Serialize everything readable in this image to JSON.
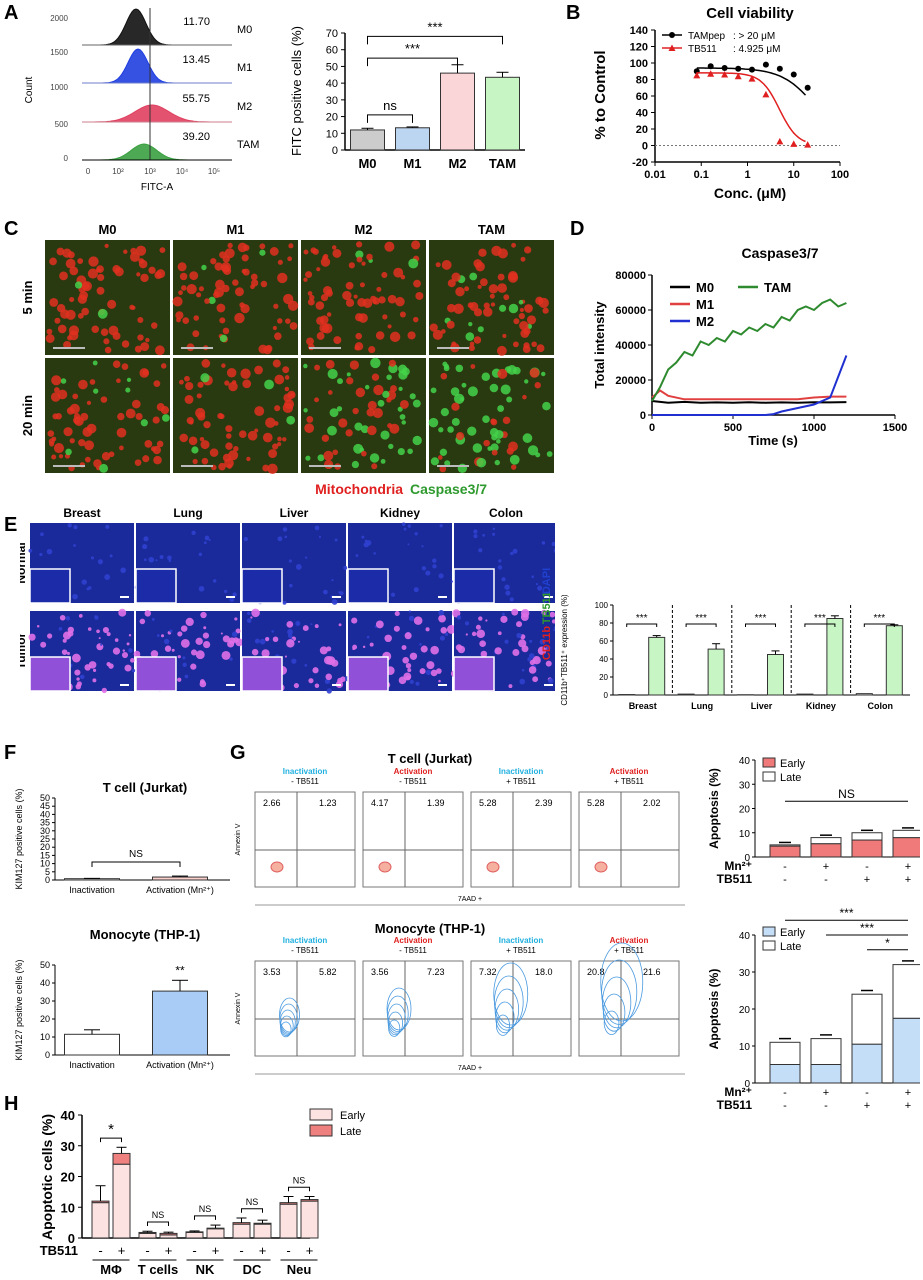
{
  "panels": {
    "A": "A",
    "B": "B",
    "C": "C",
    "D": "D",
    "E": "E",
    "F": "F",
    "G": "G",
    "H": "H"
  },
  "A_hist": {
    "ylabel": "Count",
    "xlabel": "FITC-A",
    "yticks": [
      "2000",
      "1500",
      "1000",
      "500",
      "0"
    ],
    "xticks": [
      "0",
      "10²",
      "10³",
      "10⁴",
      "10⁵"
    ],
    "rows": [
      {
        "name": "M0",
        "value": "11.70",
        "color": "#111111"
      },
      {
        "name": "M1",
        "value": "13.45",
        "color": "#1f3fe0"
      },
      {
        "name": "M2",
        "value": "55.75",
        "color": "#e04060"
      },
      {
        "name": "TAM",
        "value": "39.20",
        "color": "#3aa040"
      }
    ]
  },
  "A_bar": {
    "chart_data": {
      "type": "bar",
      "categories": [
        "M0",
        "M1",
        "M2",
        "TAM"
      ],
      "values": [
        12,
        13.3,
        46,
        43.5
      ],
      "errors": [
        1,
        0.5,
        5,
        3
      ],
      "colors": [
        "#cccccc",
        "#bcd5f0",
        "#fbd6d8",
        "#c8f5c4"
      ],
      "ylabel": "FITC positive cells (%)",
      "ylim": [
        0,
        70
      ],
      "yticks": [
        "0",
        "10",
        "20",
        "30",
        "40",
        "50",
        "60",
        "70"
      ],
      "annotations": [
        "ns",
        "***",
        "***"
      ]
    }
  },
  "B": {
    "chart_data": {
      "type": "scatter",
      "title": "Cell viability",
      "xlabel": "Conc. (μM)",
      "ylabel": "% to Control",
      "xscale": "log",
      "xlim": [
        0.01,
        100
      ],
      "ylim": [
        -20,
        140
      ],
      "xticks": [
        "0.01",
        "0.1",
        "1",
        "10",
        "100"
      ],
      "yticks": [
        "-20",
        "0",
        "20",
        "40",
        "60",
        "80",
        "100",
        "120",
        "140"
      ],
      "series": [
        {
          "name": "TAMpep",
          "ic50_label": ":  > 20 μM",
          "color": "#000000",
          "x": [
            0.08,
            0.16,
            0.32,
            0.63,
            1.25,
            2.5,
            5,
            10,
            20
          ],
          "y": [
            90,
            96,
            94,
            93,
            92,
            98,
            93,
            86,
            70
          ]
        },
        {
          "name": "TB511",
          "ic50_label": ":  4.925 μM",
          "color": "#e02020",
          "x": [
            0.08,
            0.16,
            0.32,
            0.63,
            1.25,
            2.5,
            5,
            10,
            20
          ],
          "y": [
            85,
            87,
            86,
            84,
            81,
            62,
            5,
            2,
            1
          ]
        }
      ]
    }
  },
  "C": {
    "cols": [
      "M0",
      "M1",
      "M2",
      "TAM"
    ],
    "rows": [
      "5 min",
      "20 min"
    ],
    "legend_red": "Mitochondria",
    "legend_green": "Caspase3/7"
  },
  "D": {
    "chart_data": {
      "type": "line",
      "title": "Caspase3/7",
      "xlabel": "Time (s)",
      "ylabel": "Total intensity",
      "xlim": [
        0,
        1500
      ],
      "ylim": [
        0,
        80000
      ],
      "xticks": [
        "0",
        "500",
        "1000",
        "1500"
      ],
      "yticks": [
        "0",
        "20000",
        "40000",
        "60000",
        "80000"
      ],
      "series": [
        {
          "name": "M0",
          "color": "#000000",
          "x": [
            0,
            100,
            200,
            300,
            400,
            500,
            600,
            700,
            800,
            900,
            1000,
            1100,
            1200
          ],
          "y": [
            8000,
            7000,
            7500,
            7000,
            7200,
            7000,
            7300,
            7000,
            7200,
            7000,
            7300,
            7200,
            7400
          ]
        },
        {
          "name": "M1",
          "color": "#e04040",
          "x": [
            0,
            50,
            100,
            200,
            300,
            400,
            500,
            600,
            700,
            800,
            900,
            1000,
            1100,
            1200
          ],
          "y": [
            10000,
            14000,
            11000,
            9000,
            9000,
            9000,
            9000,
            9000,
            9000,
            9000,
            9000,
            10000,
            10500,
            10500
          ]
        },
        {
          "name": "M2",
          "color": "#2030d0",
          "x": [
            0,
            700,
            750,
            800,
            900,
            1000,
            1100,
            1150,
            1200
          ],
          "y": [
            0,
            0,
            500,
            2000,
            4000,
            6000,
            10000,
            22000,
            34000
          ]
        },
        {
          "name": "TAM",
          "color": "#2e8a2e",
          "x": [
            0,
            50,
            100,
            150,
            200,
            250,
            300,
            350,
            400,
            450,
            500,
            550,
            600,
            650,
            700,
            750,
            800,
            850,
            900,
            950,
            1000,
            1050,
            1100,
            1150,
            1200
          ],
          "y": [
            8000,
            16000,
            26000,
            30000,
            36000,
            34000,
            42000,
            40000,
            44000,
            42000,
            48000,
            46000,
            50000,
            48000,
            52000,
            50000,
            56000,
            54000,
            60000,
            62000,
            60000,
            64000,
            66000,
            62000,
            64000
          ]
        }
      ]
    }
  },
  "E": {
    "cols": [
      "Breast",
      "Lung",
      "Liver",
      "Kidney",
      "Colon"
    ],
    "rows": [
      "Normal",
      "Tumor"
    ],
    "side_label_red": "CD11b",
    "side_label_green": "TB511",
    "side_label_blue": "DAPI",
    "chart_data": {
      "type": "bar",
      "categories": [
        "Breast",
        "Lung",
        "Liver",
        "Kidney",
        "Colon"
      ],
      "series": [
        {
          "name": "Normal",
          "values": [
            0.5,
            1,
            0.3,
            1,
            1.5
          ],
          "color": "#ffffff"
        },
        {
          "name": "Tumor",
          "values": [
            64,
            51,
            45,
            85,
            77
          ],
          "color": "#c8f5c4"
        }
      ],
      "errors": [
        2,
        6,
        4,
        3,
        1
      ],
      "ylabel": "CD11b⁺TB511⁺ expression (%)",
      "ylim": [
        0,
        100
      ],
      "yticks": [
        "0",
        "20",
        "40",
        "60",
        "80",
        "100"
      ],
      "annotation": "***"
    }
  },
  "F": {
    "top": {
      "chart_data": {
        "type": "bar",
        "title": "T cell (Jurkat)",
        "categories": [
          "Inactivation",
          "Activation (Mn²⁺)"
        ],
        "values": [
          0.8,
          1.8
        ],
        "errors": [
          0.2,
          0.6
        ],
        "colors": [
          "#ffffff",
          "#fbd0cc"
        ],
        "ylabel": "KIM127 positive cells (%)",
        "ylim": [
          0,
          50
        ],
        "yticks": [
          "0",
          "5",
          "10",
          "15",
          "20",
          "25",
          "30",
          "35",
          "40",
          "45",
          "50"
        ],
        "annotation": "NS"
      }
    },
    "bottom": {
      "chart_data": {
        "type": "bar",
        "title": "Monocyte (THP-1)",
        "categories": [
          "Inactivation",
          "Activation (Mn²⁺)"
        ],
        "values": [
          11.5,
          35.5
        ],
        "errors": [
          2.5,
          6
        ],
        "colors": [
          "#ffffff",
          "#a8ccf5"
        ],
        "ylabel": "KIM127 positive cells (%)",
        "ylim": [
          0,
          50
        ],
        "yticks": [
          "0",
          "10",
          "20",
          "30",
          "40",
          "50"
        ],
        "annotation": "**"
      }
    }
  },
  "G": {
    "top_title": "T cell (Jurkat)",
    "bottom_title": "Monocyte (THP-1)",
    "plot_ylabel": "Annexin V",
    "plot_xlabel": "7AAD +",
    "top_plots": [
      {
        "line1": "Inactivation",
        "line2": "- TB511",
        "color": "#20b0e0",
        "ul": "2.66",
        "ur": "1.23"
      },
      {
        "line1": "Activation",
        "line2": "- TB511",
        "color": "#e02020",
        "ul": "4.17",
        "ur": "1.39"
      },
      {
        "line1": "Inactivation",
        "line2": "+ TB511",
        "color": "#20b0e0",
        "ul": "5.28",
        "ur": "2.39"
      },
      {
        "line1": "Activation",
        "line2": "+ TB511",
        "color": "#e02020",
        "ul": "5.28",
        "ur": "2.02"
      }
    ],
    "bottom_plots": [
      {
        "line1": "Inactivation",
        "line2": "- TB511",
        "color": "#20b0e0",
        "ul": "3.53",
        "ur": "5.82"
      },
      {
        "line1": "Activation",
        "line2": "- TB511",
        "color": "#e02020",
        "ul": "3.56",
        "ur": "7.23"
      },
      {
        "line1": "Inactivation",
        "line2": "+ TB511",
        "color": "#20b0e0",
        "ul": "7.32",
        "ur": "18.0"
      },
      {
        "line1": "Activation",
        "line2": "+ TB511",
        "color": "#e02020",
        "ul": "20.8",
        "ur": "21.6"
      }
    ],
    "top_bar": {
      "chart_data": {
        "type": "bar",
        "ylabel": "Apoptosis (%)",
        "ylim": [
          0,
          40
        ],
        "yticks": [
          "0",
          "10",
          "20",
          "30",
          "40"
        ],
        "legend": [
          "Early",
          "Late"
        ],
        "early_color": "#f07a7a",
        "late_color": "#ffffff",
        "early": [
          4.5,
          5.5,
          7,
          8
        ],
        "total": [
          5,
          8,
          10,
          11
        ],
        "mn_row": [
          "-",
          "+",
          "-",
          "+"
        ],
        "tb_row": [
          "-",
          "-",
          "+",
          "+"
        ],
        "mn_label": "Mn²⁺",
        "tb_label": "TB511",
        "annotation": "NS"
      }
    },
    "bottom_bar": {
      "chart_data": {
        "type": "bar",
        "ylabel": "Apoptosis (%)",
        "ylim": [
          0,
          40
        ],
        "yticks": [
          "0",
          "10",
          "20",
          "30",
          "40"
        ],
        "legend": [
          "Early",
          "Late"
        ],
        "early_color": "#c4def7",
        "late_color": "#ffffff",
        "early": [
          5,
          5,
          10.5,
          17.5
        ],
        "total": [
          11,
          12,
          24,
          32
        ],
        "mn_row": [
          "-",
          "+",
          "-",
          "+"
        ],
        "tb_row": [
          "-",
          "-",
          "+",
          "+"
        ],
        "mn_label": "Mn²⁺",
        "tb_label": "TB511",
        "annotations": [
          "***",
          "***",
          "*"
        ]
      }
    }
  },
  "H": {
    "chart_data": {
      "type": "bar",
      "ylabel": "Apoptotic cells (%)",
      "ylim": [
        0,
        40
      ],
      "yticks": [
        "0",
        "10",
        "20",
        "30",
        "40"
      ],
      "legend": [
        "Early",
        "Late"
      ],
      "early_color": "#fde2e2",
      "late_color": "#ee8080",
      "groups": [
        "MΦ",
        "T cells",
        "NK",
        "DC",
        "Neu"
      ],
      "tb_row": [
        "-",
        "+"
      ],
      "tb_label": "TB511",
      "early": [
        11.5,
        24,
        1.5,
        1,
        1.8,
        3,
        4.5,
        4.5,
        11,
        12
      ],
      "total": [
        12,
        27.5,
        1.8,
        1.5,
        2,
        3.2,
        5,
        4.8,
        11.5,
        12.5
      ],
      "errors": [
        5,
        2,
        0.4,
        0.4,
        0.3,
        1,
        1.5,
        1,
        2,
        1
      ],
      "annotations": [
        "*",
        "NS",
        "NS",
        "NS",
        "NS"
      ]
    }
  }
}
